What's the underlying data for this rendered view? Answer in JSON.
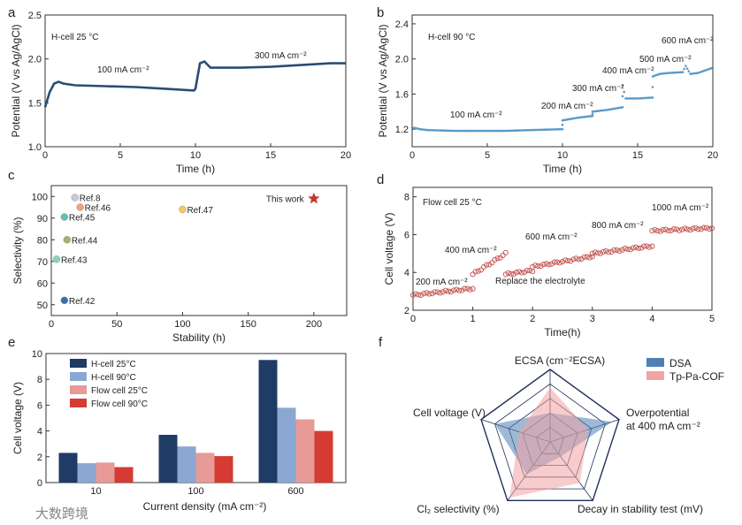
{
  "panel_labels": [
    "a",
    "b",
    "c",
    "d",
    "e",
    "f"
  ],
  "watermark": "大数跨境",
  "chart_data": [
    {
      "id": "a",
      "type": "line",
      "title": "H-cell  25 °C",
      "xlabel": "Time (h)",
      "ylabel": "Potential (V vs Ag/AgCl)",
      "xlim": [
        0,
        20
      ],
      "ylim": [
        1.0,
        2.5
      ],
      "xticks": [
        0,
        5,
        10,
        15,
        20
      ],
      "yticks": [
        1.0,
        1.5,
        2.0,
        2.5
      ],
      "tick_labels_x": [
        "0",
        "5",
        "10",
        "15",
        "20"
      ],
      "tick_labels_y": [
        "1.0",
        "1.5",
        "2.0",
        "2.5"
      ],
      "annotations": [
        "100 mA cm⁻²",
        "300 mA cm⁻²"
      ],
      "color": "#2a4d72",
      "series": [
        {
          "name": "potential",
          "x": [
            0,
            0.3,
            0.6,
            0.9,
            1.2,
            2,
            4,
            6,
            8,
            9.9,
            10.0,
            10.3,
            10.6,
            11,
            13,
            15,
            17,
            19,
            20
          ],
          "y": [
            1.45,
            1.62,
            1.72,
            1.74,
            1.72,
            1.7,
            1.69,
            1.68,
            1.66,
            1.64,
            1.66,
            1.95,
            1.97,
            1.9,
            1.9,
            1.91,
            1.93,
            1.95,
            1.95
          ]
        }
      ]
    },
    {
      "id": "b",
      "type": "scatter",
      "title": "H-cell  90 °C",
      "xlabel": "Time (h)",
      "ylabel": "Potential (V vs Ag/AgCl)",
      "xlim": [
        0,
        20
      ],
      "ylim": [
        1.0,
        2.5
      ],
      "xticks": [
        0,
        5,
        10,
        15,
        20
      ],
      "yticks": [
        1.2,
        1.6,
        2.0,
        2.4
      ],
      "tick_labels_x": [
        "0",
        "5",
        "10",
        "15",
        "20"
      ],
      "tick_labels_y": [
        "1.2",
        "1.6",
        "2.0",
        "2.4"
      ],
      "annotations": [
        "100 mA cm⁻²",
        "200 mA cm⁻²",
        "300 mA cm⁻²",
        "400 mA cm⁻²",
        "500 mA cm⁻²",
        "600 mA cm⁻²"
      ],
      "color": "#5b9bc8",
      "series": [
        {
          "name": "potential",
          "x": [
            0,
            0.5,
            1,
            3,
            6,
            8,
            10,
            10,
            11,
            12,
            12,
            13,
            14,
            14,
            14.2,
            15,
            16,
            16,
            16.5,
            17,
            18,
            18.2,
            18.5,
            19,
            19.5,
            20
          ],
          "y": [
            1.22,
            1.2,
            1.19,
            1.18,
            1.18,
            1.19,
            1.2,
            1.3,
            1.33,
            1.35,
            1.4,
            1.42,
            1.45,
            1.7,
            1.55,
            1.55,
            1.56,
            1.8,
            1.83,
            1.84,
            1.85,
            1.92,
            1.83,
            1.84,
            1.87,
            1.9
          ]
        }
      ]
    },
    {
      "id": "c",
      "type": "scatter",
      "xlabel": "Stability (h)",
      "ylabel": "Selectivity  (%)",
      "xlim": [
        0,
        225
      ],
      "ylim": [
        45,
        105
      ],
      "xticks": [
        0,
        50,
        100,
        150,
        200
      ],
      "yticks": [
        50,
        60,
        70,
        80,
        90,
        100
      ],
      "tick_labels_x": [
        "0",
        "50",
        "100",
        "150",
        "200"
      ],
      "tick_labels_y": [
        "50",
        "60",
        "70",
        "80",
        "90",
        "100"
      ],
      "points": [
        {
          "label": "Ref.8",
          "x": 18,
          "y": 99.5,
          "color": "#c8c8d8"
        },
        {
          "label": "Ref.46",
          "x": 22,
          "y": 95,
          "color": "#f4a07a"
        },
        {
          "label": "Ref.45",
          "x": 10,
          "y": 90.5,
          "color": "#5fc1b0"
        },
        {
          "label": "Ref.47",
          "x": 100,
          "y": 94,
          "color": "#f6c66a"
        },
        {
          "label": "Ref.44",
          "x": 12,
          "y": 80,
          "color": "#a8b16a"
        },
        {
          "label": "Ref.43",
          "x": 4,
          "y": 71,
          "color": "#8dd3b9"
        },
        {
          "label": "Ref.42",
          "x": 10,
          "y": 52,
          "color": "#3a6fb0"
        },
        {
          "label": "This work",
          "x": 200,
          "y": 99,
          "color": "#c0392b"
        }
      ]
    },
    {
      "id": "d",
      "type": "scatter",
      "title": "Flow cell  25 °C",
      "xlabel": "Time(h)",
      "ylabel": "Cell  voltage (V)",
      "xlim": [
        0,
        5
      ],
      "ylim": [
        2,
        8.5
      ],
      "xticks": [
        0,
        1,
        2,
        3,
        4,
        5
      ],
      "yticks": [
        2,
        4,
        6,
        8
      ],
      "tick_labels_x": [
        "0",
        "1",
        "2",
        "3",
        "4",
        "5"
      ],
      "tick_labels_y": [
        "2",
        "4",
        "6",
        "8"
      ],
      "annotations": [
        "200 mA cm⁻²",
        "400 mA cm⁻²",
        "Replace the electrolyte",
        "600 mA cm⁻²",
        "800 mA cm⁻²",
        "1000 mA cm⁻²"
      ],
      "color": "#c0504d",
      "segments": [
        {
          "x0": 0,
          "x1": 1,
          "y0": 2.8,
          "y1": 3.15
        },
        {
          "x0": 1,
          "x1": 1.55,
          "y0": 3.9,
          "y1": 5.0
        },
        {
          "x0": 1.55,
          "x1": 2,
          "y0": 3.9,
          "y1": 4.1
        },
        {
          "x0": 2,
          "x1": 3,
          "y0": 4.3,
          "y1": 4.85
        },
        {
          "x0": 3,
          "x1": 4,
          "y0": 5.0,
          "y1": 5.4
        },
        {
          "x0": 4,
          "x1": 5,
          "y0": 6.2,
          "y1": 6.35
        }
      ]
    },
    {
      "id": "e",
      "type": "bar",
      "xlabel": "Current density (mA cm⁻²)",
      "ylabel": "Cell voltage (V)",
      "ylim": [
        0,
        10
      ],
      "yticks": [
        0,
        2,
        4,
        6,
        8,
        10
      ],
      "tick_labels_y": [
        "0",
        "2",
        "4",
        "6",
        "8",
        "10"
      ],
      "categories": [
        "10",
        "100",
        "600"
      ],
      "series": [
        {
          "name": "H-cell 25°C",
          "color": "#1f3b66",
          "values": [
            2.3,
            3.7,
            9.5
          ]
        },
        {
          "name": "H-cell 90°C",
          "color": "#8aa8d2",
          "values": [
            1.5,
            2.8,
            5.8
          ]
        },
        {
          "name": "Flow cell 25°C",
          "color": "#e79a96",
          "values": [
            1.55,
            2.3,
            4.9
          ]
        },
        {
          "name": "Flow cell 90°C",
          "color": "#d53b33",
          "values": [
            1.2,
            2.05,
            4.0
          ]
        }
      ]
    },
    {
      "id": "f",
      "type": "radar",
      "axes": [
        "ECSA (cm⁻²ECSA)",
        "Overpotential at 400 mA cm⁻²",
        "Decay in stability test (mV)",
        "Cl₂ selectivity (%)",
        "Cell voltage (V)"
      ],
      "levels": 5,
      "series": [
        {
          "name": "DSA",
          "color": "#4f7fb5",
          "values": [
            0.4,
            0.9,
            0.25,
            0.55,
            0.8
          ]
        },
        {
          "name": "Tp-Pa-COF",
          "color": "#f2a3a3",
          "values": [
            0.75,
            0.55,
            0.7,
            0.95,
            0.45
          ]
        }
      ]
    }
  ]
}
